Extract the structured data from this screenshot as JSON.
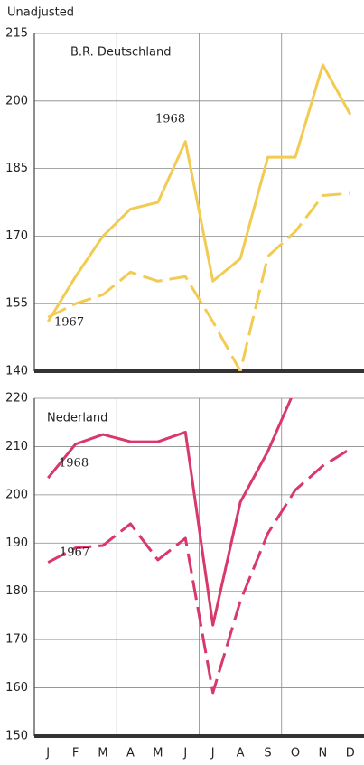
{
  "chart_data": [
    {
      "type": "line",
      "title": "Unadjusted",
      "subtitle": "B.R. Deutschland",
      "ylim": [
        140,
        215
      ],
      "yticks": [
        140,
        155,
        170,
        185,
        200,
        215
      ],
      "grid": true,
      "series": [
        {
          "name": "1968",
          "color": "#f2cb52",
          "dashed": false,
          "values": [
            151,
            161,
            170,
            176,
            177.5,
            191,
            160,
            165,
            187.5,
            187.5,
            208,
            197
          ]
        },
        {
          "name": "1967",
          "color": "#f2cb52",
          "dashed": true,
          "values": [
            152,
            155,
            157,
            162,
            160,
            161,
            151,
            140,
            165.5,
            171,
            179,
            179.5
          ]
        }
      ]
    },
    {
      "type": "line",
      "subtitle": "Nederland",
      "categories": [
        "J",
        "F",
        "M",
        "A",
        "M",
        "J",
        "J",
        "A",
        "S",
        "O",
        "N",
        "D"
      ],
      "ylim": [
        150,
        220
      ],
      "yticks": [
        150,
        160,
        170,
        180,
        190,
        200,
        210,
        220
      ],
      "grid": true,
      "series": [
        {
          "name": "1968",
          "color": "#d8396a",
          "dashed": false,
          "values": [
            203.5,
            210.5,
            212.5,
            211,
            211,
            213,
            173,
            198.5,
            209,
            222,
            null,
            null
          ]
        },
        {
          "name": "1967",
          "color": "#d8396a",
          "dashed": true,
          "values": [
            186,
            189,
            189.5,
            194,
            186.5,
            191,
            159,
            178,
            192,
            201,
            206,
            209.5
          ]
        }
      ]
    }
  ]
}
